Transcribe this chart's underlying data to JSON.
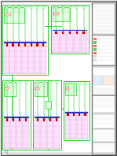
{
  "background": "#ffffff",
  "green_line": "#00cc00",
  "green_line2": "#009900",
  "red_elem": "#dd0000",
  "blue_bar": "#3333cc",
  "pink_fill": "#ffe0ff",
  "pink_edge": "#cc88cc",
  "green_fill": "#e0ffe0",
  "gray_fill": "#e8e8e8",
  "gray_edge": "#999999",
  "title_fill": "#f0f0f0",
  "title_edge": "#555555",
  "page_bg": "#ffffff",
  "fold_fill": "#dddddd",
  "fig_width": 1.49,
  "fig_height": 1.98,
  "dpi": 100
}
